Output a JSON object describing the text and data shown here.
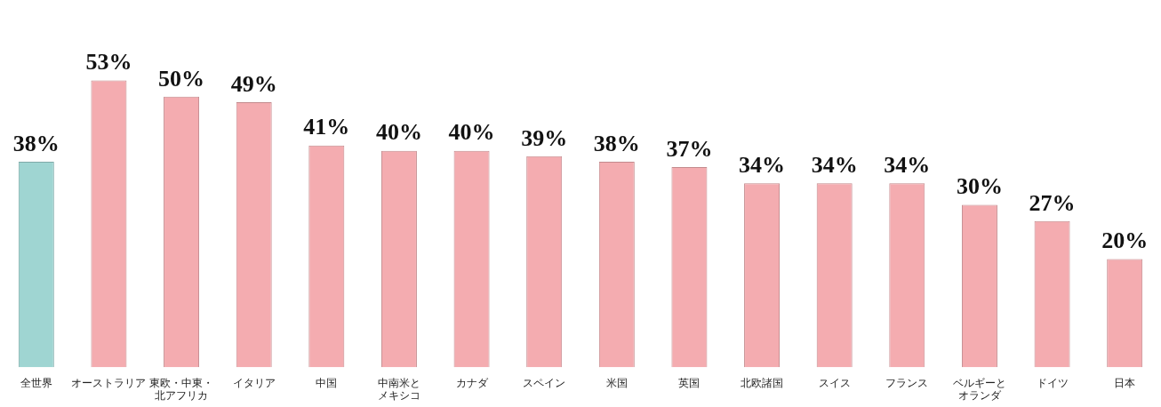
{
  "chart_data": {
    "type": "bar",
    "categories": [
      "全世界",
      "オーストラリア",
      "東欧・中東・北アフリカ",
      "イタリア",
      "中国",
      "中南米とメキシコ",
      "カナダ",
      "スペイン",
      "米国",
      "英国",
      "北欧諸国",
      "スイス",
      "フランス",
      "ベルギーとオランダ",
      "ドイツ",
      "日本"
    ],
    "values": [
      38,
      53,
      50,
      49,
      41,
      40,
      40,
      39,
      38,
      37,
      34,
      34,
      34,
      30,
      27,
      20
    ],
    "value_labels": [
      "38%",
      "53%",
      "50%",
      "49%",
      "41%",
      "40%",
      "40%",
      "39%",
      "38%",
      "37%",
      "34%",
      "34%",
      "34%",
      "30%",
      "27%",
      "20%"
    ],
    "colors": [
      "#9fd5d2",
      "#f4acb0",
      "#f4acb0",
      "#f4acb0",
      "#f4acb0",
      "#f4acb0",
      "#f4acb0",
      "#f4acb0",
      "#f4acb0",
      "#f4acb0",
      "#f4acb0",
      "#f4acb0",
      "#f4acb0",
      "#f4acb0",
      "#f4acb0",
      "#f4acb0"
    ],
    "grid": false,
    "legend": false
  }
}
